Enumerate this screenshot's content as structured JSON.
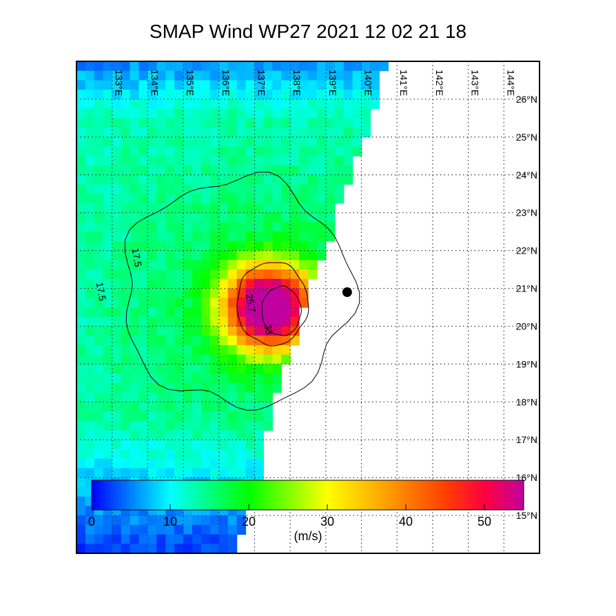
{
  "title": "SMAP Wind  WP27  2021 12 02 21 18",
  "map": {
    "lon_range": [
      132,
      145
    ],
    "lat_range": [
      14,
      27
    ],
    "lon_ticks": [
      "133°E",
      "134°E",
      "135°E",
      "136°E",
      "137°E",
      "138°E",
      "139°E",
      "140°E",
      "141°E",
      "142°E",
      "143°E",
      "144°E"
    ],
    "lat_ticks": [
      "26°N",
      "25°N",
      "24°N",
      "23°N",
      "22°N",
      "21°N",
      "20°N",
      "19°N",
      "18°N",
      "17°N",
      "16°N",
      "15°N"
    ],
    "storm_center": {
      "lon": 139.6,
      "lat": 20.9
    },
    "swath_east_edge": [
      {
        "lat": 27.0,
        "lon": 140.6
      },
      {
        "lat": 26.0,
        "lon": 140.3
      },
      {
        "lat": 25.0,
        "lon": 140.0
      },
      {
        "lat": 24.0,
        "lon": 139.6
      },
      {
        "lat": 23.0,
        "lon": 139.2
      },
      {
        "lat": 22.0,
        "lon": 138.9
      },
      {
        "lat": 21.0,
        "lon": 138.3
      },
      {
        "lat": 20.0,
        "lon": 138.2
      },
      {
        "lat": 19.0,
        "lon": 137.7
      },
      {
        "lat": 18.0,
        "lon": 137.4
      },
      {
        "lat": 17.0,
        "lon": 137.2
      },
      {
        "lat": 16.0,
        "lon": 137.1
      },
      {
        "lat": 14.0,
        "lon": 136.3
      }
    ],
    "contours": [
      {
        "label": "17.5",
        "label_lon": 133.6,
        "label_lat": 21.8
      },
      {
        "label": "17.5",
        "label_lon": 132.6,
        "label_lat": 20.9
      },
      {
        "label": "25.7",
        "label_lon": 136.8,
        "label_lat": 20.6
      },
      {
        "label": "33",
        "label_lon": 137.3,
        "label_lat": 19.9
      }
    ]
  },
  "colorbar": {
    "unit_label": "(m/s)",
    "ticks": [
      "0",
      "10",
      "20",
      "30",
      "40",
      "50"
    ],
    "min": 0,
    "max": 55,
    "colors": [
      "#0000ff",
      "#0080ff",
      "#00ffff",
      "#00ff80",
      "#00ff00",
      "#80ff00",
      "#ffff00",
      "#ffc000",
      "#ff8000",
      "#ff4000",
      "#ff0040",
      "#c000a0"
    ]
  }
}
